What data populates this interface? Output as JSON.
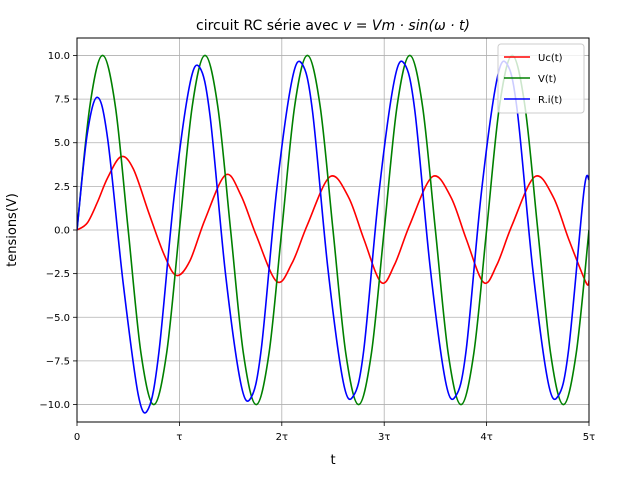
{
  "chart_data": {
    "type": "line",
    "title_prefix": "circuit RC série avec ",
    "title_math": "v = Vm · sin(ω · t)",
    "xlabel": "t",
    "ylabel": "tensions(V)",
    "xlim": [
      0,
      5
    ],
    "ylim": [
      -11,
      11
    ],
    "x_ticks": [
      {
        "value": 0,
        "label": "0"
      },
      {
        "value": 1,
        "label": "τ"
      },
      {
        "value": 2,
        "label": "2τ"
      },
      {
        "value": 3,
        "label": "3τ"
      },
      {
        "value": 4,
        "label": "4τ"
      },
      {
        "value": 5,
        "label": "5τ"
      }
    ],
    "y_ticks": [
      {
        "value": 10,
        "label": "10.0"
      },
      {
        "value": 7.5,
        "label": "7.5"
      },
      {
        "value": 5,
        "label": "5.0"
      },
      {
        "value": 2.5,
        "label": "2.5"
      },
      {
        "value": 0,
        "label": "0.0"
      },
      {
        "value": -2.5,
        "label": "−2.5"
      },
      {
        "value": -5,
        "label": "−5.0"
      },
      {
        "value": -7.5,
        "label": "−7.5"
      },
      {
        "value": -10,
        "label": "−10.0"
      }
    ],
    "grid": true,
    "legend_position": "top-right",
    "series": [
      {
        "name": "Uc(t)",
        "color": "#ff0000",
        "x": [
          0,
          0.1,
          0.2,
          0.3,
          0.43,
          0.55,
          0.7,
          0.85,
          0.97,
          1.1,
          1.25,
          1.45,
          1.6,
          1.75,
          1.95,
          2.1,
          2.25,
          2.47,
          2.65,
          2.8,
          2.97,
          3.1,
          3.25,
          3.47,
          3.65,
          3.8,
          3.97,
          4.1,
          4.25,
          4.47,
          4.65,
          4.8,
          4.97,
          5.0
        ],
        "values": [
          0,
          0.4,
          1.6,
          3.0,
          4.2,
          3.5,
          1.0,
          -1.4,
          -2.6,
          -1.8,
          0.6,
          3.15,
          2.0,
          -0.3,
          -2.95,
          -1.9,
          0.3,
          3.05,
          1.9,
          -0.5,
          -3.0,
          -2.0,
          0.3,
          3.05,
          1.9,
          -0.5,
          -3.0,
          -2.0,
          0.3,
          3.05,
          1.9,
          -0.5,
          -3.0,
          -2.9
        ]
      },
      {
        "name": "V(t)",
        "color": "#008000",
        "x": [
          0,
          0.125,
          0.25,
          0.375,
          0.5,
          0.625,
          0.75,
          0.875,
          1.0,
          1.125,
          1.25,
          1.375,
          1.5,
          1.625,
          1.75,
          1.875,
          2.0,
          2.125,
          2.25,
          2.375,
          2.5,
          2.625,
          2.75,
          2.875,
          3.0,
          3.125,
          3.25,
          3.375,
          3.5,
          3.625,
          3.75,
          3.875,
          4.0,
          4.125,
          4.25,
          4.375,
          4.5,
          4.625,
          4.75,
          4.875,
          5.0
        ],
        "values": [
          0,
          7.07,
          10,
          7.07,
          0,
          -7.07,
          -10,
          -7.07,
          0,
          7.07,
          10,
          7.07,
          0,
          -7.07,
          -10,
          -7.07,
          0,
          7.07,
          10,
          7.07,
          0,
          -7.07,
          -10,
          -7.07,
          0,
          7.07,
          10,
          7.07,
          0,
          -7.07,
          -10,
          -7.07,
          0,
          7.07,
          10,
          7.07,
          0,
          -7.07,
          -10,
          -7.07,
          0
        ]
      },
      {
        "name": "R.i(t)",
        "color": "#0000ff",
        "x": [
          0,
          0.1,
          0.2,
          0.3,
          0.45,
          0.6,
          0.7,
          0.8,
          0.95,
          1.1,
          1.2,
          1.3,
          1.45,
          1.6,
          1.7,
          1.8,
          1.95,
          2.1,
          2.2,
          2.3,
          2.45,
          2.6,
          2.7,
          2.8,
          2.95,
          3.1,
          3.2,
          3.3,
          3.45,
          3.6,
          3.7,
          3.8,
          3.95,
          4.1,
          4.2,
          4.3,
          4.45,
          4.6,
          4.7,
          4.8,
          4.95,
          5.0
        ],
        "values": [
          0,
          5.5,
          7.6,
          5.2,
          -3.0,
          -9.5,
          -10.2,
          -7.0,
          2.0,
          8.3,
          9.3,
          6.5,
          -2.5,
          -8.8,
          -9.6,
          -6.8,
          2.3,
          8.6,
          9.5,
          6.8,
          -2.2,
          -8.7,
          -9.5,
          -6.9,
          2.2,
          8.6,
          9.5,
          6.8,
          -2.2,
          -8.7,
          -9.5,
          -6.9,
          2.2,
          8.6,
          9.5,
          6.8,
          -2.2,
          -8.7,
          -9.5,
          -6.9,
          2.2,
          2.9
        ]
      }
    ]
  }
}
